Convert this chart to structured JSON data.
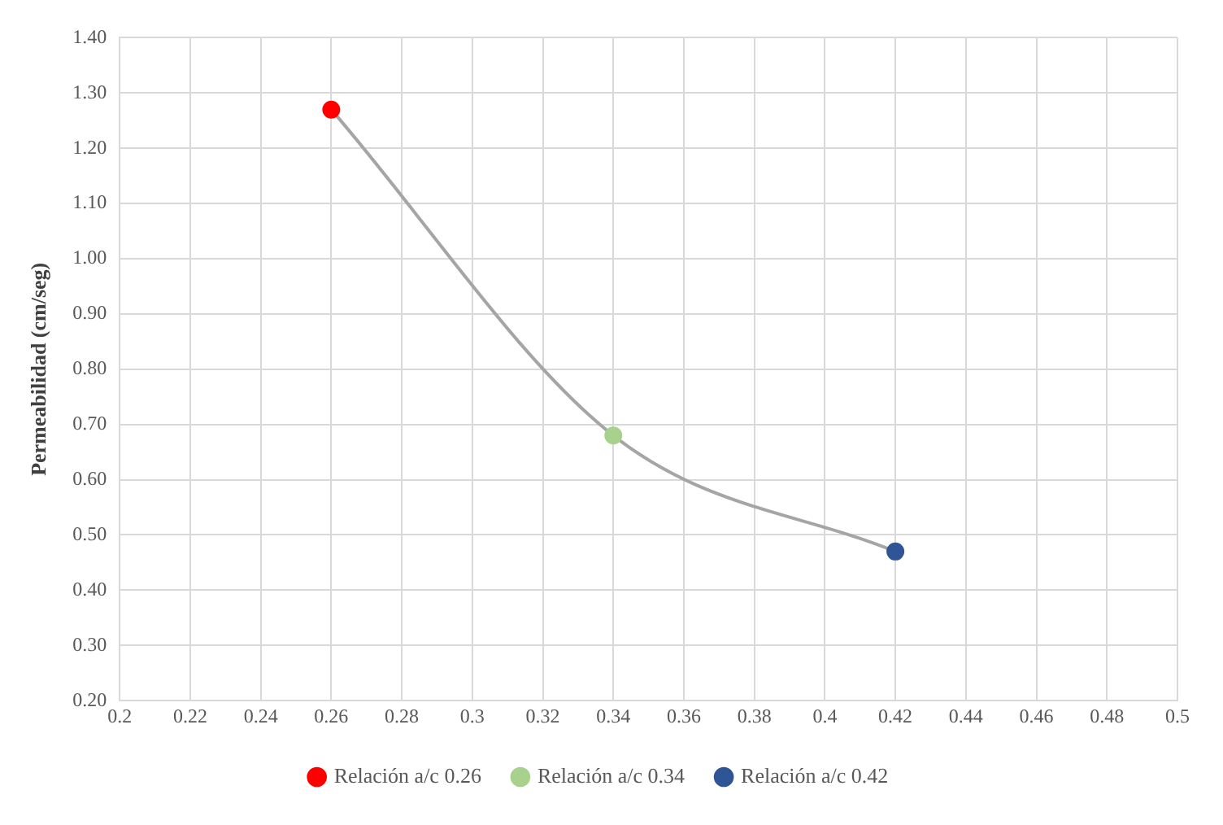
{
  "chart_data": {
    "type": "scatter",
    "ylabel": "Permeabilidad (cm/seg)",
    "xlim": [
      0.2,
      0.5
    ],
    "xticks": [
      0.2,
      0.22,
      0.24,
      0.26,
      0.28,
      0.3,
      0.32,
      0.34,
      0.36,
      0.38,
      0.4,
      0.42,
      0.44,
      0.46,
      0.48,
      0.5
    ],
    "ylim": [
      0.2,
      1.4
    ],
    "yticks": [
      {
        "value": 0.2,
        "label": "0.20"
      },
      {
        "value": 0.3,
        "label": "0.30"
      },
      {
        "value": 0.4,
        "label": "0.40"
      },
      {
        "value": 0.5,
        "label": "0.50"
      },
      {
        "value": 0.6,
        "label": "0.60"
      },
      {
        "value": 0.7,
        "label": "0.70"
      },
      {
        "value": 0.8,
        "label": "0.80"
      },
      {
        "value": 0.9,
        "label": "0.90"
      },
      {
        "value": 1.0,
        "label": "1.00"
      },
      {
        "value": 1.1,
        "label": "1.10"
      },
      {
        "value": 1.2,
        "label": "1.20"
      },
      {
        "value": 1.3,
        "label": "1.30"
      },
      {
        "value": 1.4,
        "label": "1.40"
      }
    ],
    "grid": true,
    "legend": "bottom",
    "marker": "circle",
    "series": [
      {
        "type": "line",
        "color": "#a5a5a5",
        "x": [
          0.26,
          0.34,
          0.42
        ],
        "values": [
          1.27,
          0.68,
          0.47
        ],
        "marker": "none"
      },
      {
        "name": "Relación a/c 0.26",
        "color": "#ff0000",
        "x": [
          0.26
        ],
        "values": [
          1.27
        ]
      },
      {
        "name": "Relación a/c 0.34",
        "color": "#a9d18e",
        "x": [
          0.34
        ],
        "values": [
          0.68
        ]
      },
      {
        "name": "Relación a/c 0.42",
        "color": "#2f5597",
        "x": [
          0.42
        ],
        "values": [
          0.47
        ]
      }
    ]
  }
}
